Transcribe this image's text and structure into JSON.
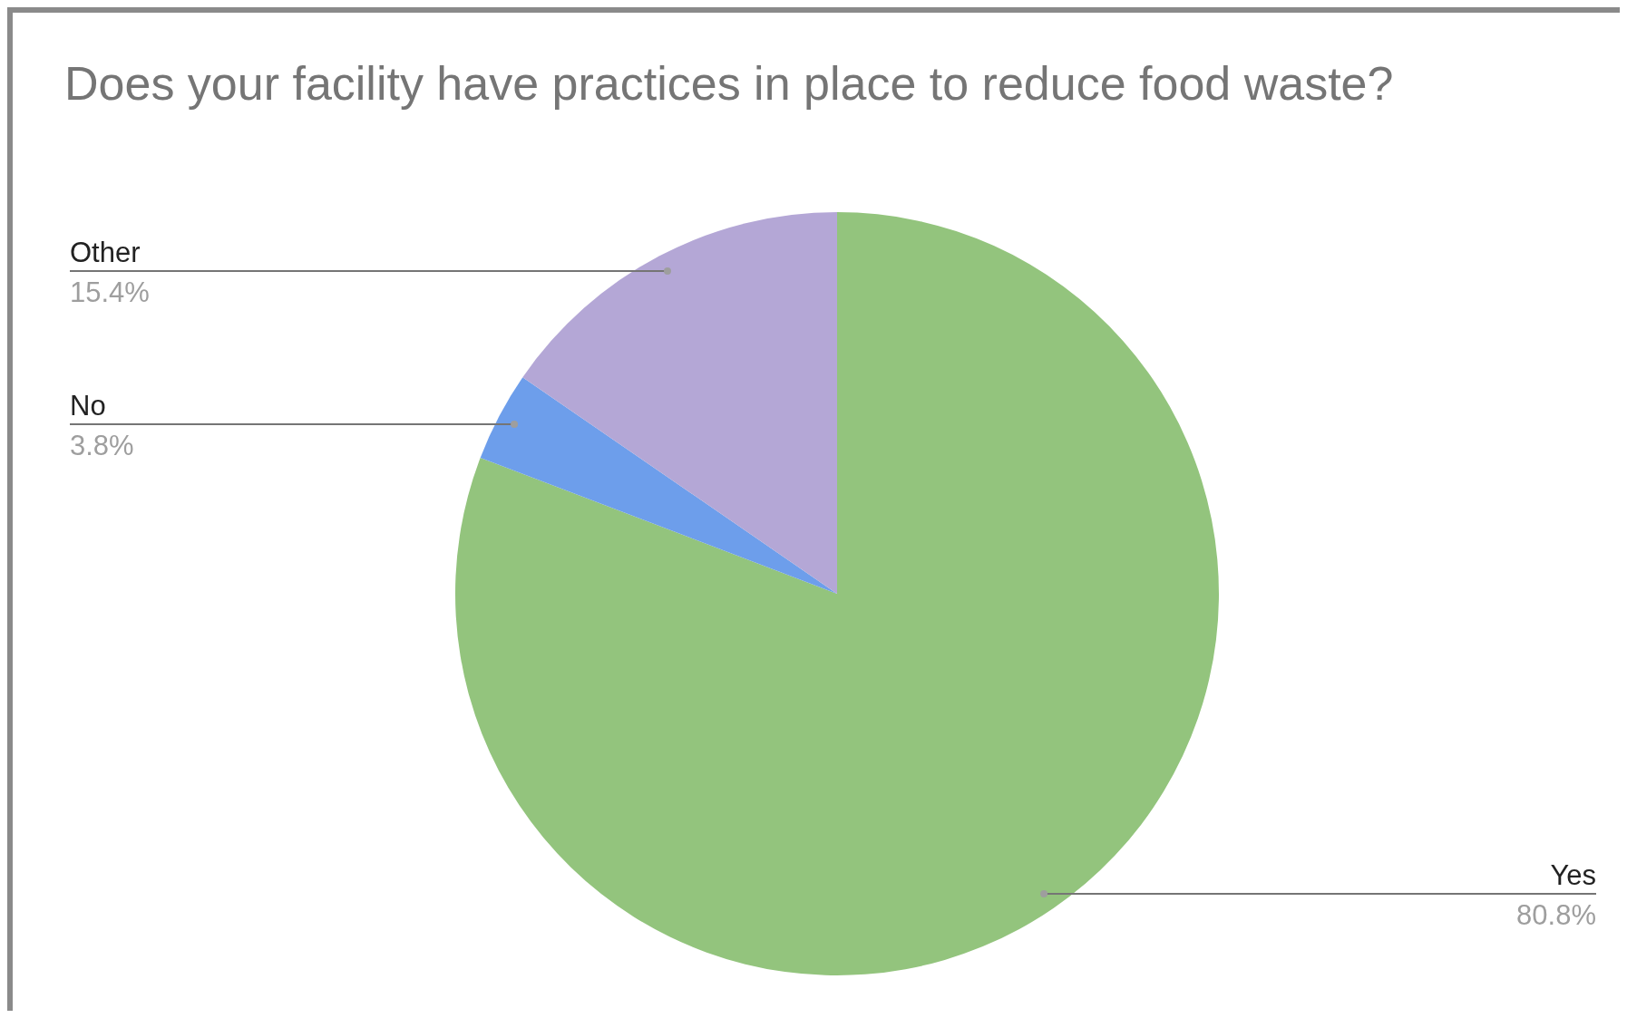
{
  "chart_data": {
    "type": "pie",
    "title": "Does your facility have practices in place to reduce food waste?",
    "categories": [
      "Yes",
      "No",
      "Other"
    ],
    "values": [
      80.8,
      3.8,
      15.4
    ],
    "colors": [
      "#93c47d",
      "#6d9eeb",
      "#b4a7d6"
    ],
    "value_labels": [
      "80.8%",
      "3.8%",
      "15.4%"
    ]
  }
}
